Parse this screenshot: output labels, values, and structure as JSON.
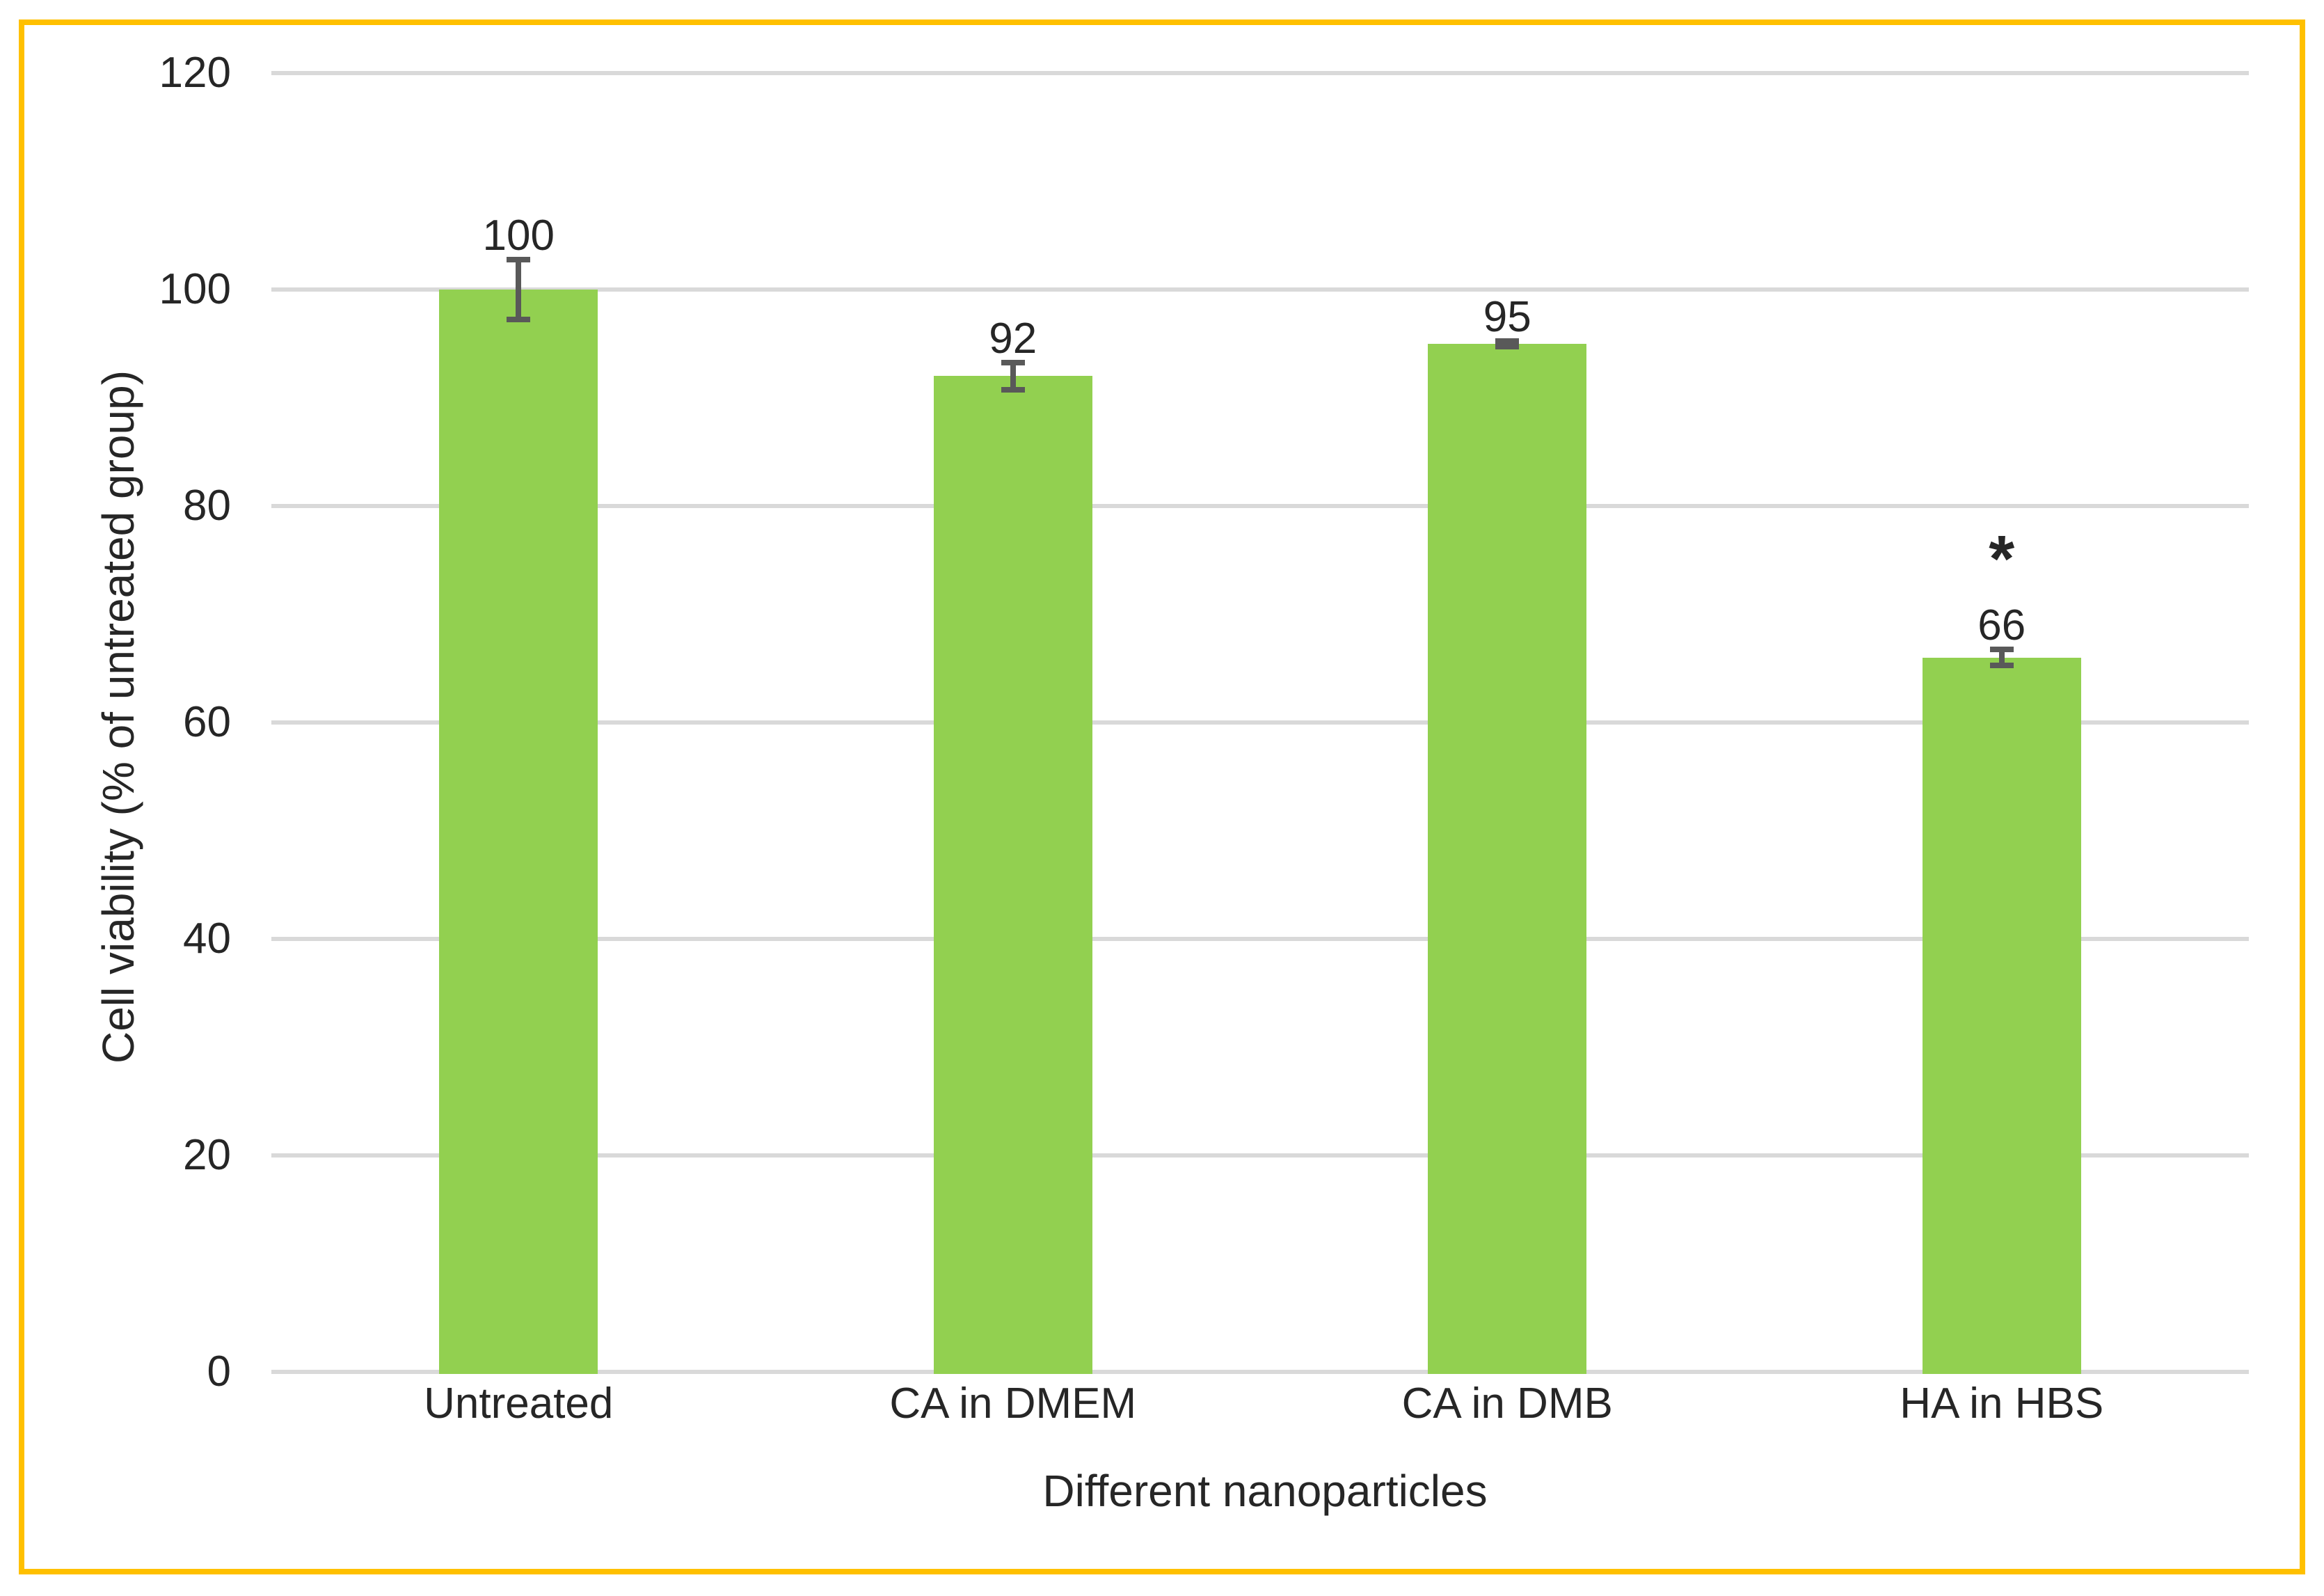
{
  "chart_data": {
    "type": "bar",
    "title": "",
    "xlabel": "Different nanoparticles",
    "ylabel": "Cell viability (% of untreated group)",
    "categories": [
      "Untreated",
      "CA in DMEM",
      "CA in DMB",
      "HA in HBS"
    ],
    "values": [
      100,
      92,
      95,
      66
    ],
    "data_labels": [
      "100",
      "92",
      "95",
      "66"
    ],
    "error_bars_plus_minus": [
      3,
      1.5,
      0.5,
      1
    ],
    "significance_markers": [
      "",
      "",
      "",
      "*"
    ],
    "ylim": [
      0,
      120
    ],
    "yticks": [
      0,
      20,
      40,
      60,
      80,
      100,
      120
    ],
    "grid": true,
    "legend": false,
    "colors": {
      "bar_fill": "#92D050",
      "error_bar": "#595959",
      "gridline": "#D9D9D9",
      "axis_line": "#D9D9D9",
      "text": "#262626",
      "frame_border": "#FFC000",
      "background": "#FFFFFF"
    }
  }
}
